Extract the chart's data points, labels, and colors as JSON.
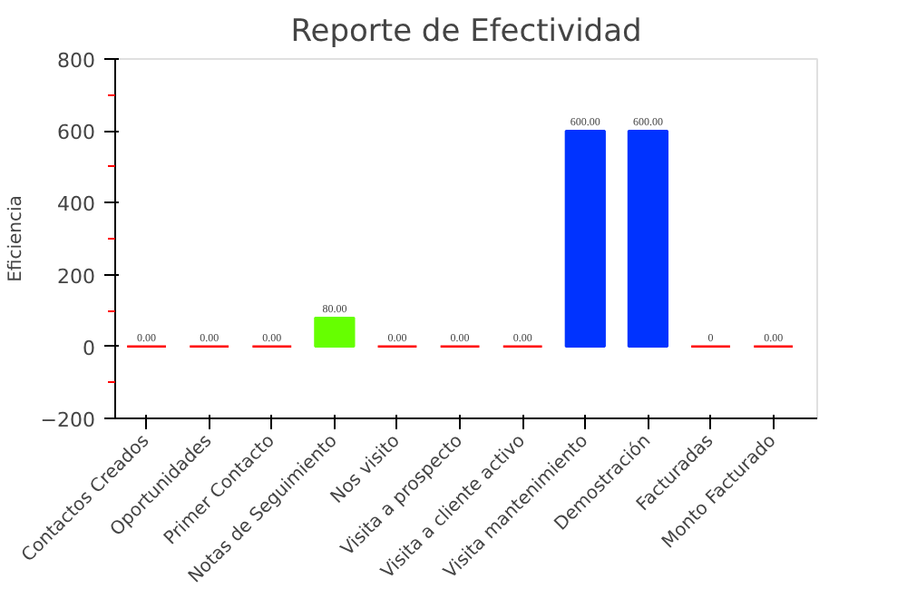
{
  "chart_data": {
    "type": "bar",
    "title": "Reporte de Efectividad",
    "ylabel": "Eficiencia",
    "categories": [
      "Contactos Creados",
      "Oportunidades",
      "Primer Contacto",
      "Notas de Seguimiento",
      "Nos visito",
      "Visita a prospecto",
      "Visita a cliente activo",
      "Visita mantenimiento",
      "Demostración",
      "Facturadas",
      "Monto Facturado"
    ],
    "values": [
      0,
      0,
      0,
      80,
      0,
      0,
      0,
      600,
      600,
      0,
      0
    ],
    "colors": [
      "#ff0000",
      "#ff0000",
      "#ff0000",
      "#66ff00",
      "#ff0000",
      "#ff0000",
      "#ff0000",
      "#0033ff",
      "#0033ff",
      "#ff0000",
      "#ff0000"
    ],
    "value_labels": [
      "0.00",
      "0.00",
      "0.00",
      "80.00",
      "0.00",
      "0.00",
      "0.00",
      "600.00",
      "600.00",
      "0",
      "0.00"
    ],
    "ylim": [
      -200,
      800
    ],
    "yticks": [
      -200,
      0,
      200,
      400,
      600,
      800
    ],
    "grid": false
  }
}
